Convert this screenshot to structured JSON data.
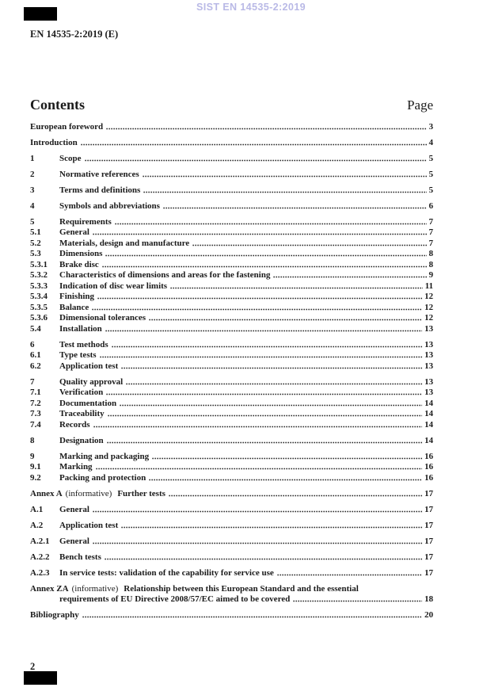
{
  "page": {
    "watermark": "SIST EN 14535-2:2019",
    "doc_ref": "EN 14535-2:2019 (E)",
    "footer_page_number": "2",
    "watermark_color": "#b9b9e6",
    "text_color": "#1b1b1b",
    "scan_mark_color": "#000000"
  },
  "contents": {
    "title": "Contents",
    "page_label": "Page",
    "entries": [
      {
        "label": "European foreword",
        "page": "3"
      },
      {
        "label": "Introduction",
        "page": "4",
        "gap": true
      },
      {
        "num": "1",
        "label": "Scope",
        "page": "5",
        "gap": true
      },
      {
        "num": "2",
        "label": "Normative references",
        "page": "5",
        "gap": true
      },
      {
        "num": "3",
        "label": "Terms and definitions",
        "page": "5",
        "gap": true
      },
      {
        "num": "4",
        "label": "Symbols and abbreviations",
        "page": "6",
        "gap": true
      },
      {
        "num": "5",
        "label": "Requirements",
        "page": "7",
        "gap": true
      },
      {
        "num": "5.1",
        "label": "General",
        "page": "7"
      },
      {
        "num": "5.2",
        "label": "Materials, design and manufacture",
        "page": "7"
      },
      {
        "num": "5.3",
        "label": "Dimensions",
        "page": "8"
      },
      {
        "num": "5.3.1",
        "label": "Brake disc",
        "page": "8"
      },
      {
        "num": "5.3.2",
        "label": "Characteristics of dimensions and areas for the fastening",
        "page": "9"
      },
      {
        "num": "5.3.3",
        "label": "Indication of disc wear limits",
        "page": "11"
      },
      {
        "num": "5.3.4",
        "label": "Finishing",
        "page": "12"
      },
      {
        "num": "5.3.5",
        "label": "Balance",
        "page": "12"
      },
      {
        "num": "5.3.6",
        "label": "Dimensional tolerances",
        "page": "12"
      },
      {
        "num": "5.4",
        "label": "Installation",
        "page": "13"
      },
      {
        "num": "6",
        "label": "Test methods",
        "page": "13",
        "gap": true
      },
      {
        "num": "6.1",
        "label": "Type tests",
        "page": "13"
      },
      {
        "num": "6.2",
        "label": "Application test",
        "page": "13"
      },
      {
        "num": "7",
        "label": "Quality approval",
        "page": "13",
        "gap": true
      },
      {
        "num": "7.1",
        "label": "Verification",
        "page": "13"
      },
      {
        "num": "7.2",
        "label": "Documentation",
        "page": "14"
      },
      {
        "num": "7.3",
        "label": "Traceability",
        "page": "14"
      },
      {
        "num": "7.4",
        "label": "Records",
        "page": "14"
      },
      {
        "num": "8",
        "label": "Designation",
        "page": "14",
        "gap": true
      },
      {
        "num": "9",
        "label": "Marking and packaging",
        "page": "16",
        "gap": true
      },
      {
        "num": "9.1",
        "label": "Marking",
        "page": "16"
      },
      {
        "num": "9.2",
        "label": "Packing and protection",
        "page": "16"
      },
      {
        "pre": "Annex A",
        "info": "(informative)",
        "label": "Further tests",
        "page": "17",
        "gap": true
      },
      {
        "num": "A.1",
        "label": "General",
        "page": "17",
        "gap": true
      },
      {
        "num": "A.2",
        "label": "Application test",
        "page": "17",
        "gap": true
      },
      {
        "num": "A.2.1",
        "label": "General",
        "page": "17",
        "gap": true
      },
      {
        "num": "A.2.2",
        "label": "Bench tests",
        "page": "17",
        "gap": true
      },
      {
        "num": "A.2.3",
        "label": "In service tests: validation of the capability for service use",
        "page": "17",
        "gap": true
      },
      {
        "pre": "Annex ZA",
        "info": "(informative)",
        "label": "Relationship between this European Standard and the essential",
        "line2": "requirements of EU Directive 2008/57/EC aimed to be covered",
        "page": "18",
        "gap": true
      },
      {
        "label": "Bibliography",
        "page": "20",
        "gap": true
      }
    ]
  }
}
